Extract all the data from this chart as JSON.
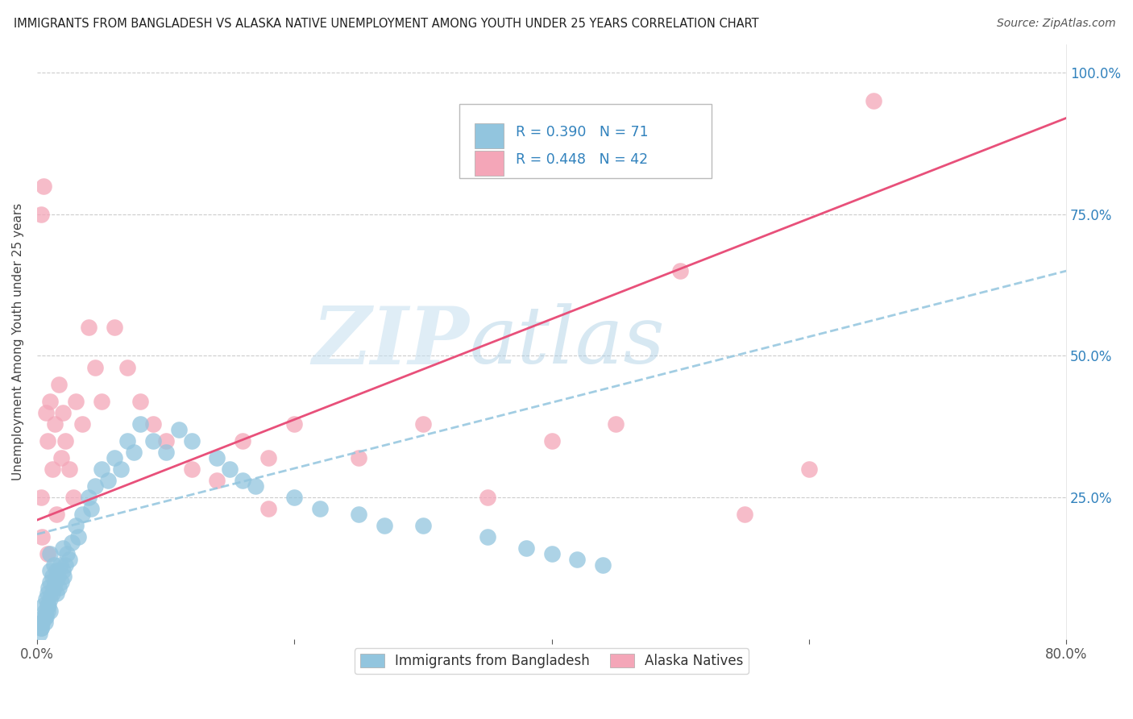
{
  "title": "IMMIGRANTS FROM BANGLADESH VS ALASKA NATIVE UNEMPLOYMENT AMONG YOUTH UNDER 25 YEARS CORRELATION CHART",
  "source": "Source: ZipAtlas.com",
  "ylabel": "Unemployment Among Youth under 25 years",
  "watermark_zip": "ZIP",
  "watermark_atlas": "atlas",
  "legend_label1": "Immigrants from Bangladesh",
  "legend_label2": "Alaska Natives",
  "R1": "0.390",
  "N1": "71",
  "R2": "0.448",
  "N2": "42",
  "color_blue": "#92c5de",
  "color_pink": "#f4a6b8",
  "color_blue_line": "#2166ac",
  "color_pink_line": "#e8507a",
  "color_dashed": "#92c5de",
  "color_blue_text": "#3182bd",
  "background_color": "#ffffff",
  "grid_color": "#cccccc",
  "xlim": [
    0.0,
    0.8
  ],
  "ylim": [
    0.0,
    1.05
  ],
  "blue_x": [
    0.003,
    0.004,
    0.005,
    0.005,
    0.006,
    0.006,
    0.007,
    0.007,
    0.008,
    0.008,
    0.009,
    0.009,
    0.01,
    0.01,
    0.01,
    0.01,
    0.01,
    0.012,
    0.012,
    0.013,
    0.013,
    0.014,
    0.015,
    0.015,
    0.016,
    0.017,
    0.018,
    0.019,
    0.02,
    0.02,
    0.021,
    0.022,
    0.023,
    0.025,
    0.027,
    0.03,
    0.032,
    0.035,
    0.04,
    0.042,
    0.045,
    0.05,
    0.055,
    0.06,
    0.065,
    0.07,
    0.075,
    0.08,
    0.09,
    0.1,
    0.11,
    0.12,
    0.14,
    0.15,
    0.16,
    0.17,
    0.2,
    0.22,
    0.25,
    0.27,
    0.3,
    0.35,
    0.38,
    0.4,
    0.42,
    0.44,
    0.002,
    0.003,
    0.004,
    0.006,
    0.008
  ],
  "blue_y": [
    0.02,
    0.03,
    0.04,
    0.06,
    0.03,
    0.05,
    0.04,
    0.07,
    0.05,
    0.08,
    0.06,
    0.09,
    0.05,
    0.07,
    0.1,
    0.12,
    0.15,
    0.08,
    0.11,
    0.09,
    0.13,
    0.1,
    0.08,
    0.12,
    0.11,
    0.09,
    0.13,
    0.1,
    0.12,
    0.16,
    0.11,
    0.13,
    0.15,
    0.14,
    0.17,
    0.2,
    0.18,
    0.22,
    0.25,
    0.23,
    0.27,
    0.3,
    0.28,
    0.32,
    0.3,
    0.35,
    0.33,
    0.38,
    0.35,
    0.33,
    0.37,
    0.35,
    0.32,
    0.3,
    0.28,
    0.27,
    0.25,
    0.23,
    0.22,
    0.2,
    0.2,
    0.18,
    0.16,
    0.15,
    0.14,
    0.13,
    0.01,
    0.02,
    0.03,
    0.04,
    0.06
  ],
  "pink_x": [
    0.003,
    0.005,
    0.007,
    0.008,
    0.01,
    0.012,
    0.014,
    0.015,
    0.017,
    0.019,
    0.02,
    0.022,
    0.025,
    0.028,
    0.03,
    0.035,
    0.04,
    0.045,
    0.05,
    0.06,
    0.07,
    0.08,
    0.09,
    0.1,
    0.12,
    0.14,
    0.16,
    0.18,
    0.2,
    0.25,
    0.3,
    0.35,
    0.4,
    0.45,
    0.5,
    0.55,
    0.6,
    0.003,
    0.004,
    0.008,
    0.18,
    0.65
  ],
  "pink_y": [
    0.25,
    0.8,
    0.4,
    0.35,
    0.42,
    0.3,
    0.38,
    0.22,
    0.45,
    0.32,
    0.4,
    0.35,
    0.3,
    0.25,
    0.42,
    0.38,
    0.55,
    0.48,
    0.42,
    0.55,
    0.48,
    0.42,
    0.38,
    0.35,
    0.3,
    0.28,
    0.35,
    0.32,
    0.38,
    0.32,
    0.38,
    0.25,
    0.35,
    0.38,
    0.65,
    0.22,
    0.3,
    0.75,
    0.18,
    0.15,
    0.23,
    0.95
  ],
  "pink_line_x0": 0.0,
  "pink_line_y0": 0.21,
  "pink_line_x1": 0.8,
  "pink_line_y1": 0.92,
  "blue_line_x0": 0.0,
  "blue_line_y0": 0.185,
  "blue_line_x1": 0.8,
  "blue_line_y1": 0.65
}
